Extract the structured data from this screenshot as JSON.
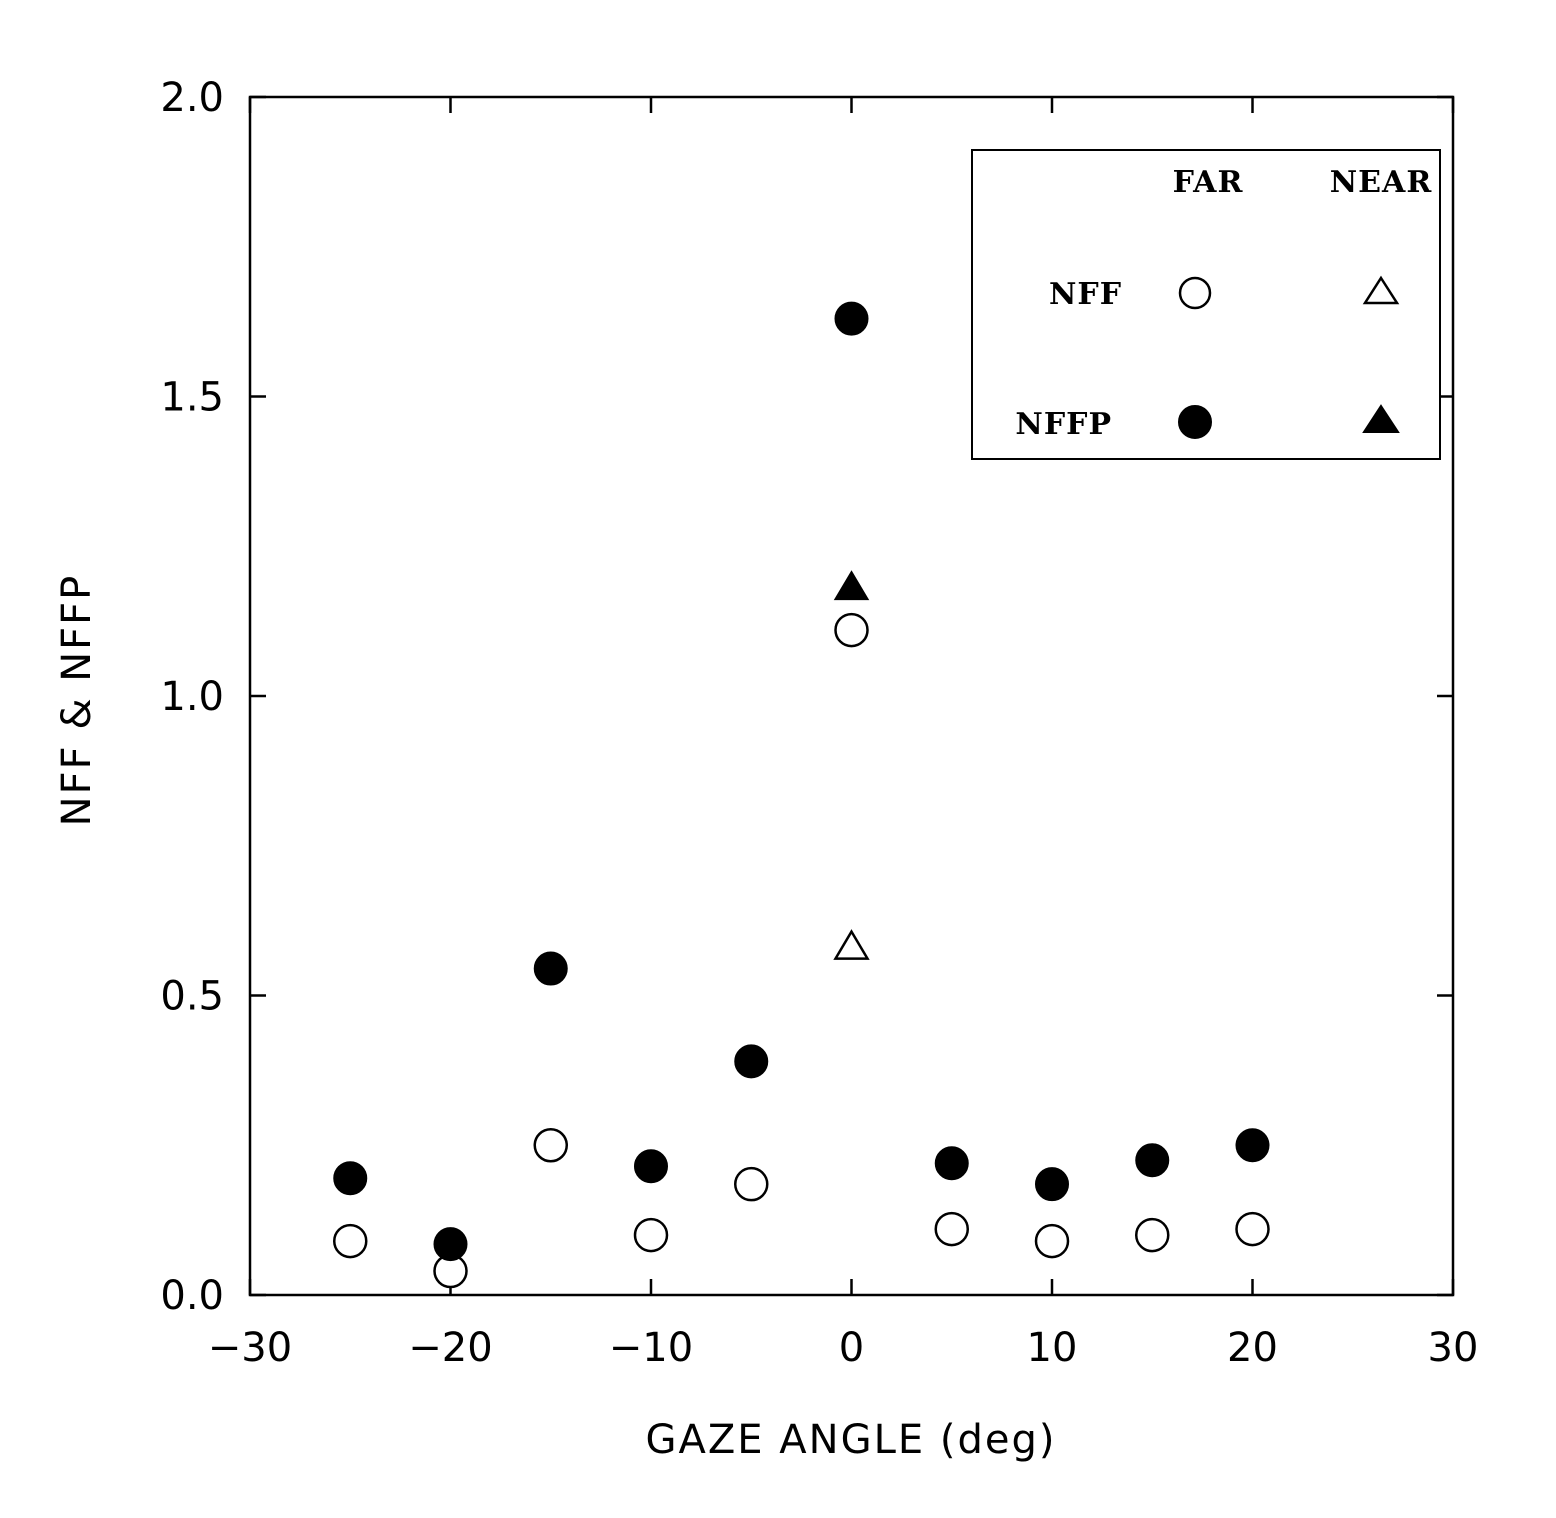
{
  "chart_data": {
    "type": "scatter",
    "xlabel": "GAZE ANGLE (deg)",
    "ylabel": "NFF & NFFP",
    "xlim": [
      -30,
      30
    ],
    "ylim": [
      0,
      2
    ],
    "x_ticks": [
      -30,
      -20,
      -10,
      0,
      10,
      20,
      30
    ],
    "x_tick_labels": [
      "−30",
      "−20",
      "−10",
      "0",
      "10",
      "20",
      "30"
    ],
    "y_ticks": [
      0,
      0.5,
      1,
      1.5,
      2
    ],
    "y_tick_labels": [
      "0.0",
      "0.5",
      "1.0",
      "1.5",
      "2.0"
    ],
    "grid": false,
    "legend": {
      "placement": "top-right",
      "col_headers": [
        "FAR",
        "NEAR"
      ],
      "row_labels": [
        "NFF",
        "NFFP"
      ]
    },
    "series": [
      {
        "name": "NFF FAR",
        "marker": "open-circle",
        "x": [
          -25,
          -20,
          -15,
          -10,
          -5,
          0,
          5,
          10,
          15,
          20
        ],
        "y": [
          0.09,
          0.04,
          0.25,
          0.1,
          0.185,
          1.11,
          0.11,
          0.09,
          0.1,
          0.11
        ]
      },
      {
        "name": "NFFP FAR",
        "marker": "filled-circle",
        "x": [
          -25,
          -20,
          -15,
          -10,
          -5,
          0,
          5,
          10,
          15,
          20
        ],
        "y": [
          0.195,
          0.085,
          0.545,
          0.215,
          0.39,
          1.63,
          0.22,
          0.185,
          0.225,
          0.25
        ]
      },
      {
        "name": "NFF NEAR",
        "marker": "open-triangle",
        "x": [
          0
        ],
        "y": [
          0.58
        ]
      },
      {
        "name": "NFFP NEAR",
        "marker": "filled-triangle",
        "x": [
          0
        ],
        "y": [
          1.18
        ]
      }
    ]
  }
}
